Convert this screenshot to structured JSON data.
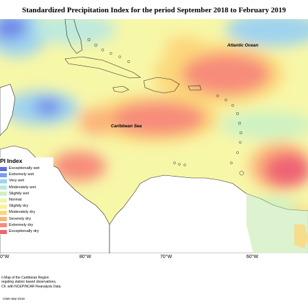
{
  "title": "Standardized Precipitation Index for the period September 2018 to February 2019",
  "labels": {
    "atlantic": "Atlantic Ocean",
    "caribbean": "Caribbean Sea"
  },
  "axis_labels": [
    "80°W",
    "70°W",
    "60°W"
  ],
  "axis_left_partial": "0°W",
  "legend": {
    "title": "SPI Index",
    "title_visible": "PI Index",
    "items": [
      {
        "label": "Exceptionally wet",
        "color": "#5a6fe0"
      },
      {
        "label": "Extremely wet",
        "color": "#7f9bf0"
      },
      {
        "label": "Very wet",
        "color": "#9fd3ef"
      },
      {
        "label": "Moderately wet",
        "color": "#b8ecd6"
      },
      {
        "label": "Slightly wet",
        "color": "#cdf2c3"
      },
      {
        "label": "Normal",
        "color": "#eef7b0"
      },
      {
        "label": "Slightly dry",
        "color": "#fbf19a"
      },
      {
        "label": "Moderately dry",
        "color": "#fcd77a"
      },
      {
        "label": "Severely dry",
        "color": "#fcb47a"
      },
      {
        "label": "Extremely dry",
        "color": "#f78c7a"
      },
      {
        "label": "Exceptionally dry",
        "color": "#ef6474"
      }
    ]
  },
  "notes": [
    "n Map of the Caribbean Region",
    "regating station based observations,",
    "CF, with NCEP/NCAR Reanalysis Data."
  ],
  "credit": "CIMH Mar-2019"
}
